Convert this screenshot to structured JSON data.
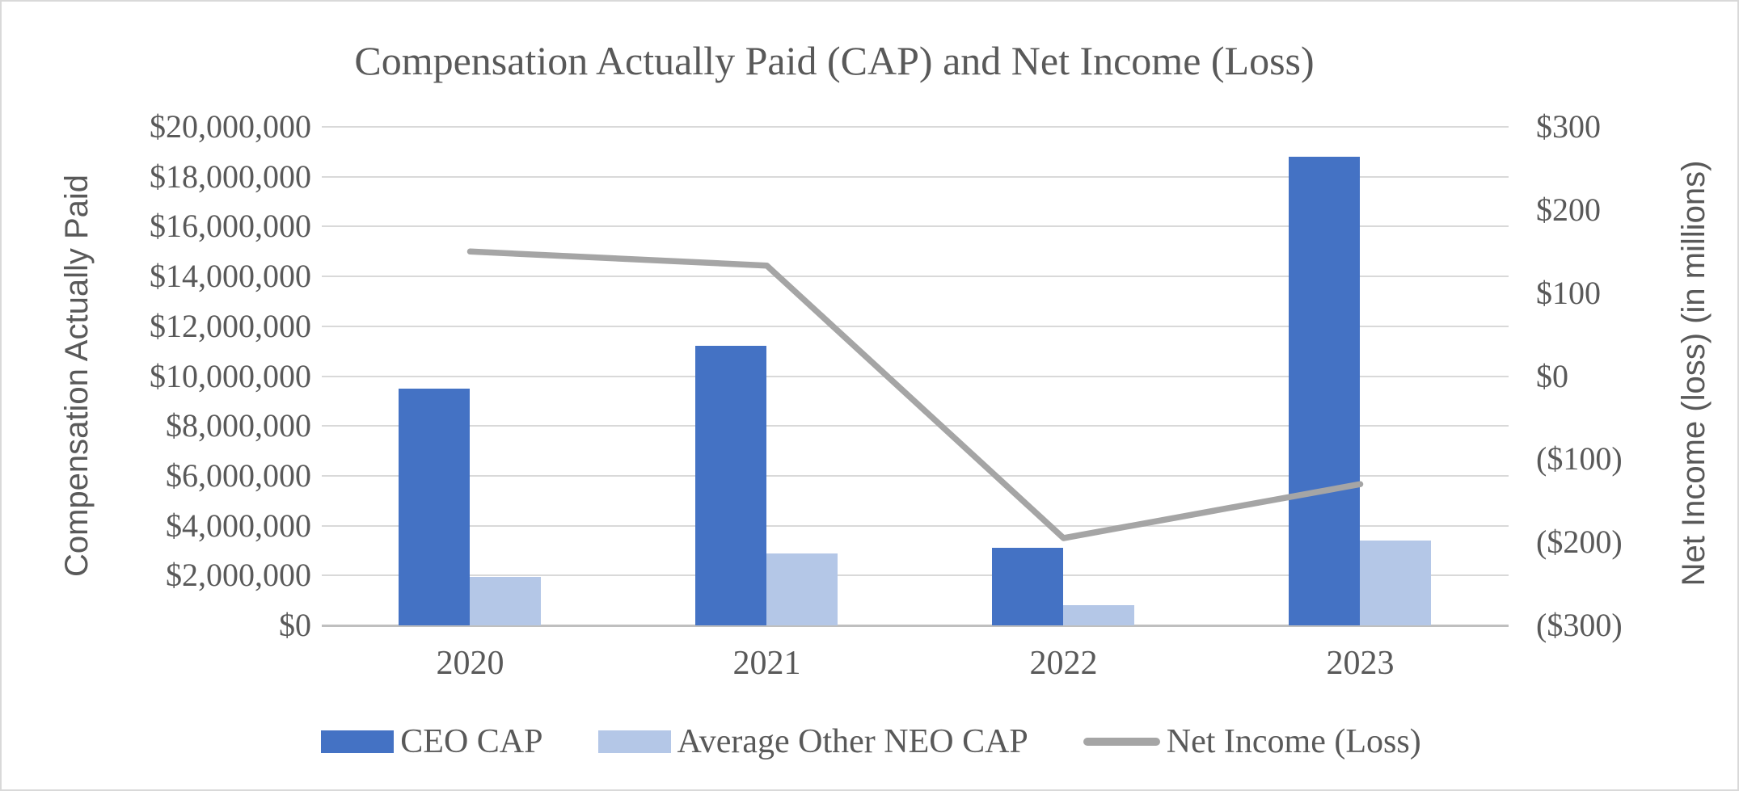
{
  "chart_data": {
    "type": "combo",
    "title": "Compensation Actually Paid (CAP) and Net Income (Loss)",
    "categories": [
      "2020",
      "2021",
      "2022",
      "2023"
    ],
    "series": [
      {
        "name": "CEO CAP",
        "type": "bar",
        "axis": "left",
        "color": "#4472C4",
        "values": [
          9500000,
          11200000,
          3100000,
          18800000
        ]
      },
      {
        "name": "Average Other NEO CAP",
        "type": "bar",
        "axis": "left",
        "color": "#B4C7E7",
        "values": [
          1950000,
          2900000,
          800000,
          3400000
        ]
      },
      {
        "name": "Net Income (Loss)",
        "type": "line",
        "axis": "right",
        "color": "#A5A5A5",
        "values_in_millions": [
          150,
          133,
          -195,
          -130
        ]
      }
    ],
    "left_axis": {
      "title": "Compensation Actually Paid",
      "min": 0,
      "max": 20000000,
      "step": 2000000,
      "tick_labels_top_to_bottom": [
        "$20,000,000",
        "$18,000,000",
        "$16,000,000",
        "$14,000,000",
        "$12,000,000",
        "$10,000,000",
        "$8,000,000",
        "$6,000,000",
        "$4,000,000",
        "$2,000,000",
        "$0"
      ]
    },
    "right_axis": {
      "title": "Net Income (loss) (in millions)",
      "min": -300,
      "max": 300,
      "step": 100,
      "tick_labels_top_to_bottom": [
        "$300",
        "$200",
        "$100",
        "$0",
        "($100)",
        "($200)",
        "($300)"
      ]
    },
    "legend_position": "bottom",
    "grid": true,
    "colors": {
      "text": "#595959",
      "gridline": "#D9D9D9",
      "axis_line": "#BFBFBF",
      "border": "#D9D9D9",
      "background": "#FFFFFF"
    }
  }
}
